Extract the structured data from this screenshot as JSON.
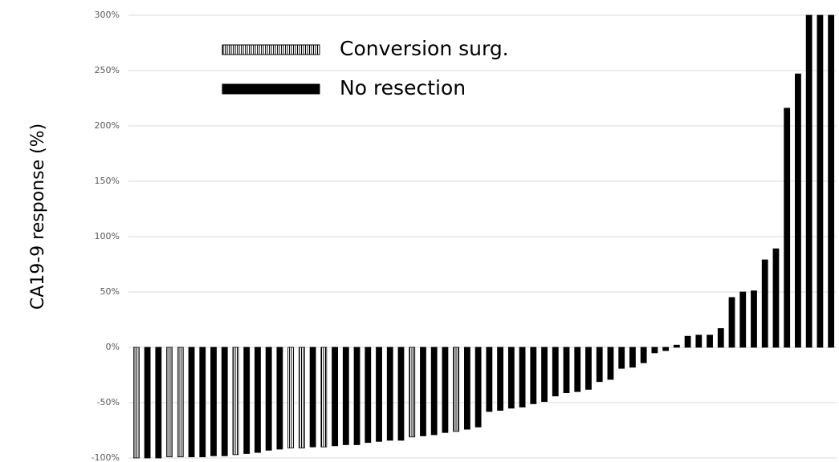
{
  "chart_data": {
    "type": "bar",
    "y_label": "CA19-9 response (%)",
    "categories": [
      null,
      null,
      null,
      null,
      null,
      null,
      null,
      null,
      null,
      null,
      null,
      null,
      null,
      null,
      null,
      null,
      null,
      null,
      null,
      null,
      null,
      null,
      null,
      null,
      null,
      null,
      null,
      null,
      null,
      null,
      null,
      null,
      null,
      null,
      null,
      null,
      null,
      null,
      null,
      null,
      null,
      null,
      null,
      null,
      null,
      null,
      null,
      null,
      null,
      null,
      null,
      null,
      null,
      null,
      null,
      null,
      null,
      null,
      null,
      null,
      null,
      null,
      null,
      null
    ],
    "series": [
      {
        "name": "Conversion surg.",
        "color": "#000000",
        "pattern": "vertical-hatch",
        "values": [
          -100,
          null,
          null,
          -99,
          -99,
          null,
          null,
          null,
          null,
          -97,
          null,
          null,
          null,
          null,
          -91,
          -91,
          null,
          -90,
          null,
          null,
          null,
          null,
          null,
          null,
          null,
          -81,
          null,
          null,
          null,
          -76,
          null,
          null,
          null,
          null,
          null,
          null,
          null,
          null,
          null,
          null,
          null,
          null,
          null,
          null,
          null,
          null,
          null,
          null,
          null,
          null,
          null,
          null,
          null,
          null,
          null,
          null,
          null,
          null,
          null,
          null,
          null,
          null,
          null,
          null
        ]
      },
      {
        "name": "No resection",
        "color": "#000000",
        "pattern": "solid",
        "values": [
          null,
          -100,
          -100,
          null,
          null,
          -99,
          -99,
          -98,
          -98,
          null,
          -96,
          -95,
          -93,
          -92,
          null,
          null,
          -90,
          null,
          -89,
          -88,
          -88,
          -86,
          -85,
          -84,
          -84,
          null,
          -80,
          -79,
          -77,
          null,
          -74,
          -72,
          -58,
          -57,
          -55,
          -54,
          -51,
          -49,
          -44,
          -41,
          -40,
          -38,
          -31,
          -29,
          -19,
          -18,
          -14,
          -5,
          -3,
          2,
          10,
          11,
          11,
          17,
          45,
          50,
          51,
          79,
          89,
          216,
          247,
          300,
          300,
          300
        ]
      }
    ],
    "ylim": [
      -100,
      300
    ],
    "yticks": [
      {
        "value": -100,
        "label": "-100%"
      },
      {
        "value": -50,
        "label": "-50%"
      },
      {
        "value": 0,
        "label": "0%"
      },
      {
        "value": 50,
        "label": "50%"
      },
      {
        "value": 100,
        "label": "100%"
      },
      {
        "value": 150,
        "label": "150%"
      },
      {
        "value": 200,
        "label": "200%"
      },
      {
        "value": 250,
        "label": "250%"
      },
      {
        "value": 300,
        "label": "300%"
      }
    ],
    "grid": true,
    "legend": "top-left"
  }
}
